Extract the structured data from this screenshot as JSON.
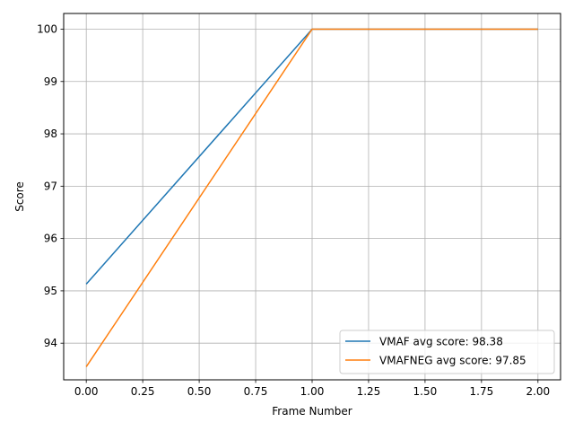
{
  "chart_data": {
    "type": "line",
    "title": "",
    "xlabel": "Frame Number",
    "ylabel": "Score",
    "xlim": [
      -0.1,
      2.1
    ],
    "ylim": [
      93.3,
      100.3
    ],
    "xticks": [
      0.0,
      0.25,
      0.5,
      0.75,
      1.0,
      1.25,
      1.5,
      1.75,
      2.0
    ],
    "xtick_labels": [
      "0.00",
      "0.25",
      "0.50",
      "0.75",
      "1.00",
      "1.25",
      "1.50",
      "1.75",
      "2.00"
    ],
    "yticks": [
      94,
      95,
      96,
      97,
      98,
      99,
      100
    ],
    "ytick_labels": [
      "94",
      "95",
      "96",
      "97",
      "98",
      "99",
      "100"
    ],
    "grid": true,
    "legend_position": "lower-right",
    "series": [
      {
        "name": "VMAF avg score: 98.38",
        "color": "#1f77b4",
        "x": [
          0,
          1,
          2
        ],
        "y": [
          95.13,
          100.0,
          100.0
        ]
      },
      {
        "name": "VMAFNEG avg score: 97.85",
        "color": "#ff7f0e",
        "x": [
          0,
          1,
          2
        ],
        "y": [
          93.55,
          100.0,
          100.0
        ]
      }
    ]
  }
}
